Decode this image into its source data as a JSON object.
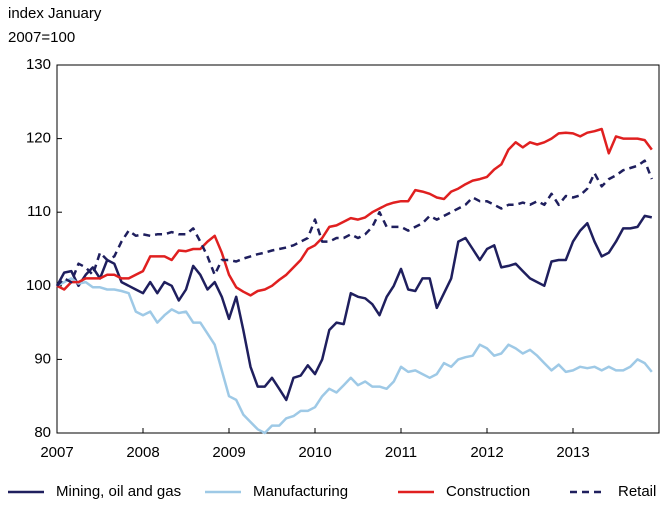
{
  "chart_data": {
    "type": "line",
    "ylabel": [
      "index January",
      "2007=100"
    ],
    "categories": [
      "2007",
      null,
      null,
      null,
      null,
      null,
      null,
      null,
      null,
      null,
      null,
      null,
      "2008",
      null,
      null,
      null,
      null,
      null,
      null,
      null,
      null,
      null,
      null,
      null,
      "2009",
      null,
      null,
      null,
      null,
      null,
      null,
      null,
      null,
      null,
      null,
      null,
      "2010",
      null,
      null,
      null,
      null,
      null,
      null,
      null,
      null,
      null,
      null,
      null,
      "2011",
      null,
      null,
      null,
      null,
      null,
      null,
      null,
      null,
      null,
      null,
      null,
      "2012",
      null,
      null,
      null,
      null,
      null,
      null,
      null,
      null,
      null,
      null,
      null,
      "2013",
      null,
      null,
      null,
      null,
      null,
      null,
      null,
      null,
      null,
      null,
      null
    ],
    "ylim": [
      80,
      130
    ],
    "yticks": [
      80,
      90,
      100,
      110,
      120,
      130
    ],
    "series": [
      {
        "name": "Mining, oil and gas",
        "color": "#1f1f5e",
        "dash": false,
        "values": [
          100,
          101.8,
          102,
          100,
          101.5,
          102.5,
          101,
          103.5,
          103,
          100.5,
          100,
          99.5,
          99,
          100.5,
          99,
          100.5,
          100,
          98,
          99.5,
          102.7,
          101.5,
          99.5,
          100.5,
          98.5,
          95.5,
          98.5,
          94,
          89,
          86.3,
          86.3,
          87.5,
          86,
          84.5,
          87.5,
          87.8,
          89.2,
          88,
          90,
          94,
          95,
          94.8,
          99,
          98.5,
          98.3,
          97.5,
          96,
          98.5,
          100,
          102.3,
          99.5,
          99.3,
          101,
          101,
          97,
          99,
          101,
          106,
          106.5,
          105,
          103.5,
          105,
          105.5,
          102.5,
          102.7,
          103,
          102,
          101,
          100.5,
          100,
          103.3,
          103.5,
          103.5,
          106,
          107.5,
          108.5,
          106,
          104,
          104.5,
          106,
          107.8,
          107.8,
          108,
          109.5,
          109.3
        ]
      },
      {
        "name": "Manufacturing",
        "color": "#9ec9e6",
        "dash": false,
        "values": [
          100,
          100.5,
          101,
          100.3,
          100.5,
          99.8,
          99.8,
          99.5,
          99.5,
          99.3,
          99,
          96.5,
          96,
          96.5,
          95,
          96,
          96.8,
          96.3,
          96.5,
          95,
          95,
          93.5,
          92,
          88.5,
          85,
          84.5,
          82.5,
          81.5,
          80.5,
          80,
          81,
          81,
          82,
          82.3,
          83,
          83,
          83.5,
          85,
          86,
          85.5,
          86.5,
          87.5,
          86.5,
          87,
          86.3,
          86.3,
          86,
          87,
          89,
          88.3,
          88.5,
          88,
          87.5,
          88,
          89.5,
          89,
          90,
          90.3,
          90.5,
          92,
          91.5,
          90.5,
          90.8,
          92,
          91.5,
          90.8,
          91.3,
          90.5,
          89.5,
          88.5,
          89.3,
          88.3,
          88.5,
          89,
          88.8,
          89,
          88.5,
          89,
          88.5,
          88.5,
          89,
          90,
          89.5,
          88.3
        ]
      },
      {
        "name": "Construction",
        "color": "#e02020",
        "dash": false,
        "values": [
          100,
          99.5,
          100.5,
          100.5,
          101,
          101,
          101,
          101.5,
          101.5,
          101,
          101,
          101.5,
          102,
          104,
          104,
          104,
          103.5,
          104.8,
          104.7,
          105,
          105,
          106,
          106.8,
          104.5,
          101.5,
          99.8,
          99.2,
          98.7,
          99.3,
          99.5,
          100,
          100.8,
          101.5,
          102.5,
          103.5,
          105,
          105.5,
          106.5,
          108,
          108.2,
          108.7,
          109.2,
          109,
          109.3,
          110,
          110.5,
          111,
          111.3,
          111.5,
          111.5,
          113,
          112.8,
          112.5,
          112,
          111.8,
          112.8,
          113.2,
          113.8,
          114.3,
          114.5,
          114.8,
          115.8,
          116.5,
          118.5,
          119.5,
          118.8,
          119.5,
          119.2,
          119.5,
          120,
          120.7,
          120.8,
          120.7,
          120.3,
          120.8,
          121,
          121.3,
          118,
          120.3,
          120,
          120,
          120,
          119.8,
          118.5
        ]
      },
      {
        "name": "Retail",
        "color": "#1f1f5e",
        "dash": true,
        "values": [
          100,
          101,
          100.5,
          103,
          102.5,
          101.5,
          104.5,
          103.5,
          104,
          106,
          107.5,
          106.8,
          107,
          106.8,
          107,
          107,
          107.3,
          107,
          107,
          107.8,
          106,
          104,
          101.5,
          103.5,
          103.5,
          103.3,
          103.7,
          104,
          104.3,
          104.5,
          104.8,
          105,
          105.2,
          105.5,
          106,
          106.5,
          109,
          106,
          106,
          106.5,
          106.5,
          107,
          106.5,
          107,
          108,
          110,
          108,
          108,
          108,
          107.5,
          108,
          108.5,
          109.5,
          109,
          109.5,
          110,
          110.5,
          111,
          112,
          111.5,
          111.5,
          111,
          110.5,
          111,
          111,
          111.3,
          111,
          111.5,
          111,
          112.5,
          111,
          112.2,
          112,
          112.3,
          113.2,
          115.3,
          113.5,
          114.5,
          115,
          115.7,
          116,
          116.3,
          117,
          114.5
        ]
      }
    ]
  }
}
